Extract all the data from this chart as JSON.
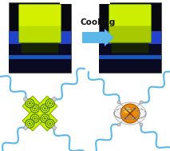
{
  "cooling_text": "Cooling",
  "cooling_font_size": 7.5,
  "cooling_font_weight": "bold",
  "arrow_color": "#5BB8E8",
  "background_color": "#ffffff",
  "polymer_chain_color": "#5BB8E8",
  "aie_core_color": "#EE8800",
  "scheme_cross_color": "#CCEE00",
  "scheme_cross_outline": "#7AAA00",
  "linker_color": "#999999",
  "photo_bg": "#080810",
  "photo_blue_band": "#2244CC",
  "photo_dark_lower": "#0A0A22",
  "gel_bright_top": "#D4F000",
  "gel_bright_body": "#BBDD00",
  "gel_dim_top": "#CCEE00",
  "gel_dim_body": "#A8C800",
  "gel_shadow": "#1A2800",
  "phenyl_fill": "#88AA00",
  "phenyl_outline": "#336600",
  "sphere_highlight": "#FFD050",
  "sphere_outline": "#AA5500",
  "cage_color": "#888888"
}
